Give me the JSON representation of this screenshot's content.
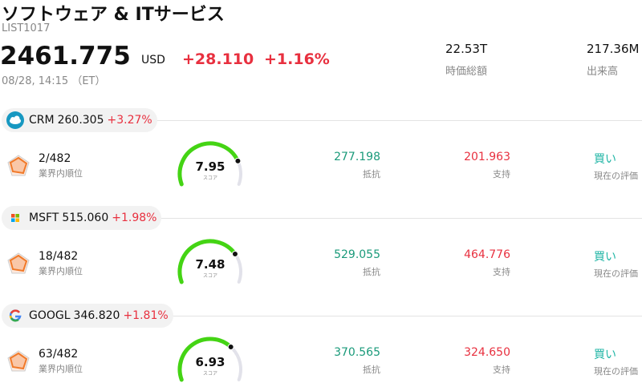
{
  "header": {
    "title": "ソフトウェア & ITサービス",
    "code": "LIST1017",
    "price": "2461.775",
    "currency": "USD",
    "change": "+28.110",
    "change_pct": "+1.16%",
    "time": "08/28, 14:15 （ET）",
    "market_cap": "22.53T",
    "market_cap_label": "時価総額",
    "volume": "217.36M",
    "volume_label": "出来高"
  },
  "rows": [
    {
      "ticker": "CRM",
      "price": "260.305",
      "change_pct": "+3.27%",
      "rank": "2/482",
      "rank_label": "業界内順位",
      "score": 7.95,
      "score_label": "スコア",
      "resistance": "277.198",
      "resistance_label": "抵抗",
      "support": "201.963",
      "support_label": "支持",
      "rating": "買い",
      "rating_label": "現在の評価"
    },
    {
      "ticker": "MSFT",
      "price": "515.060",
      "change_pct": "+1.98%",
      "rank": "18/482",
      "rank_label": "業界内順位",
      "score": 7.48,
      "score_label": "スコア",
      "resistance": "529.055",
      "resistance_label": "抵抗",
      "support": "464.776",
      "support_label": "支持",
      "rating": "買い",
      "rating_label": "現在の評価"
    },
    {
      "ticker": "GOOGL",
      "price": "346.820",
      "change_pct": "+1.81%",
      "rank": "63/482",
      "rank_label": "業界内順位",
      "score": 6.93,
      "score_label": "スコア",
      "resistance": "370.565",
      "resistance_label": "抵抗",
      "support": "324.650",
      "support_label": "支持",
      "rating": "買い",
      "rating_label": "現在の評価"
    }
  ]
}
